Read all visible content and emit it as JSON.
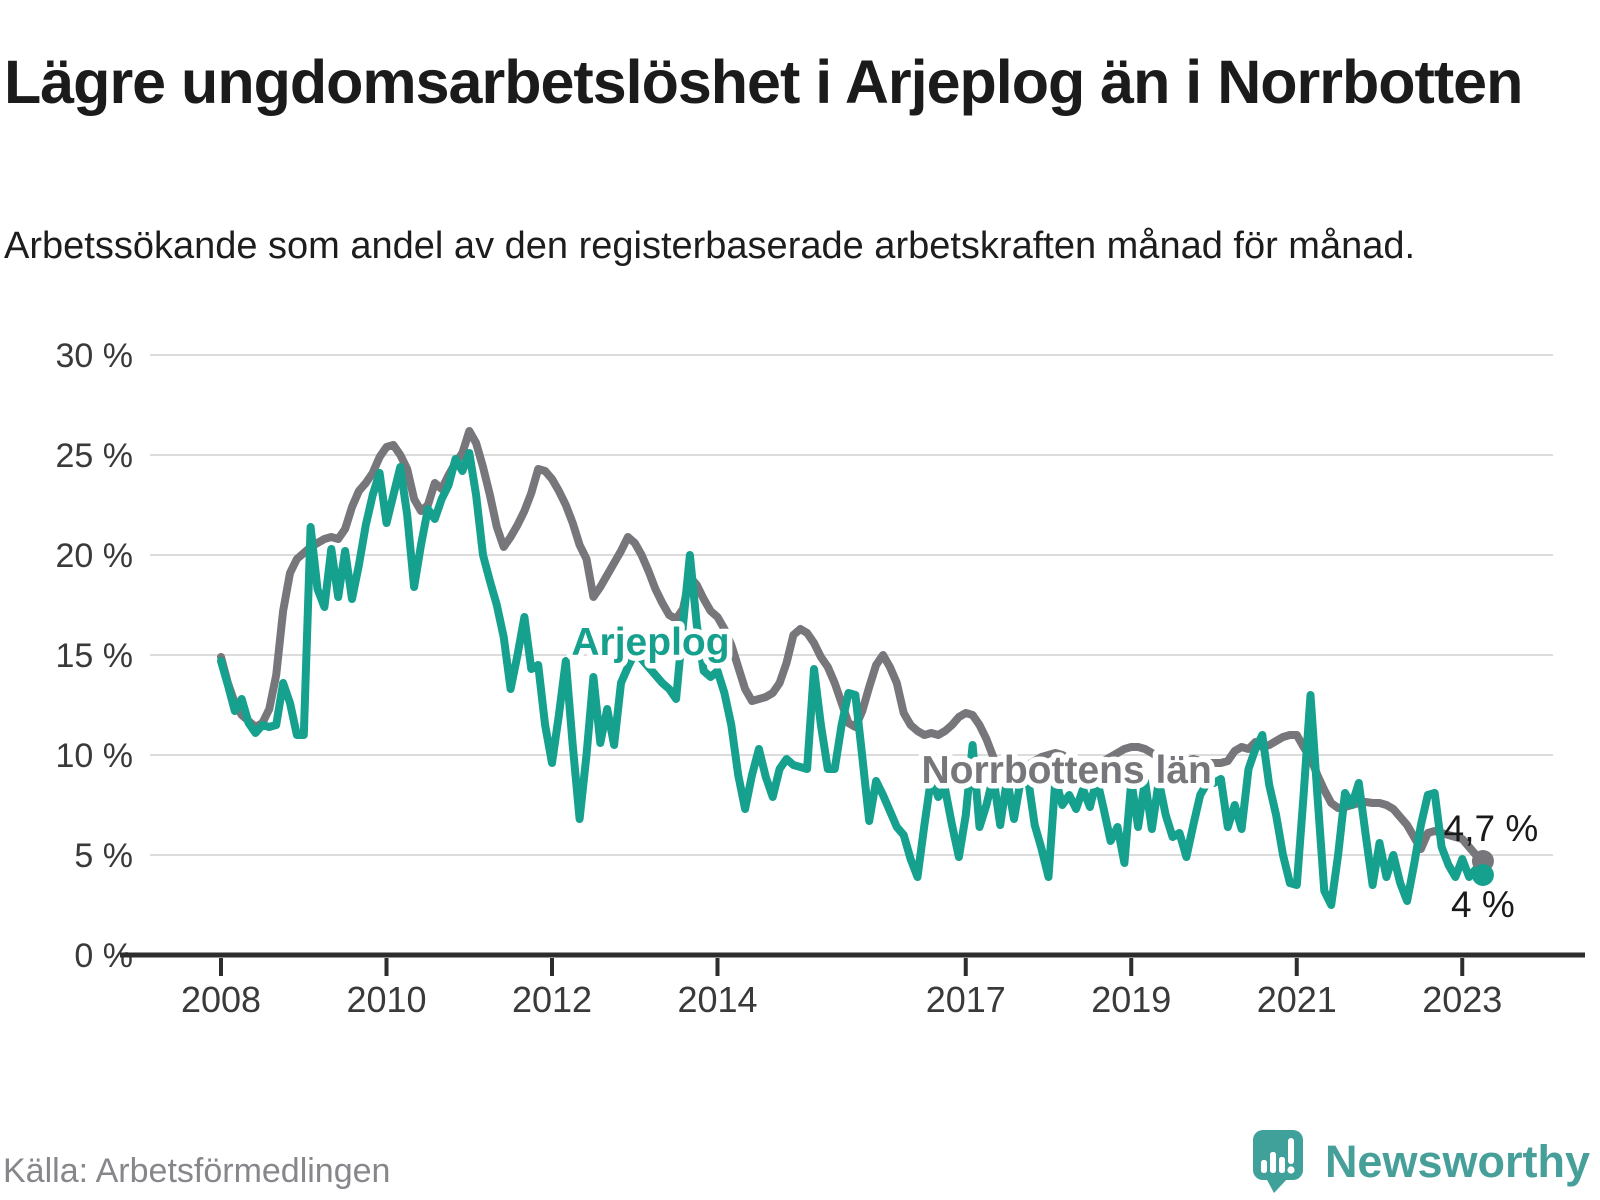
{
  "header": {
    "title": "Lägre ungdomsarbetslöshet i Arjeplog än i Norrbotten",
    "subtitle": "Arbetssökande som andel av den registerbaserade arbetskraften månad för månad."
  },
  "footer": {
    "source": "Källa: Arbetsförmedlingen",
    "brand": "Newsworthy"
  },
  "colors": {
    "arjeplog": "#16a08e",
    "norrbotten": "#77767b",
    "grid": "#dcdcdc",
    "axis": "#2d2d2d",
    "tick_text": "#3a3a3a",
    "value_text": "#1a1a1a",
    "logo": "#3fa19a"
  },
  "chart_data": {
    "type": "line",
    "title": "Lägre ungdomsarbetslöshet i Arjeplog än i Norrbotten",
    "xlabel": "",
    "ylabel": "",
    "ylim": [
      0,
      30
    ],
    "grid": true,
    "x_start": "2008-01",
    "x_frequency": "monthly",
    "x_end": "2023-04",
    "y_ticks": [
      {
        "value": 30,
        "label": "30 %"
      },
      {
        "value": 25,
        "label": "25 %"
      },
      {
        "value": 20,
        "label": "20 %"
      },
      {
        "value": 15,
        "label": "15 %"
      },
      {
        "value": 10,
        "label": "10 %"
      },
      {
        "value": 5,
        "label": "5 %"
      },
      {
        "value": 0,
        "label": "0 %"
      }
    ],
    "x_ticks": [
      {
        "year": 2008,
        "label": "2008"
      },
      {
        "year": 2010,
        "label": "2010"
      },
      {
        "year": 2012,
        "label": "2012"
      },
      {
        "year": 2014,
        "label": "2014"
      },
      {
        "year": 2017,
        "label": "2017"
      },
      {
        "year": 2019,
        "label": "2019"
      },
      {
        "year": 2021,
        "label": "2021"
      },
      {
        "year": 2023,
        "label": "2023"
      }
    ],
    "series": [
      {
        "name": "Norrbottens län",
        "color": "#77767b",
        "end_label": "4,7 %",
        "label_pos": {
          "year": 2018.22,
          "value": 9.3
        },
        "values": [
          14.9,
          13.6,
          12.6,
          12.0,
          11.7,
          11.4,
          11.6,
          12.3,
          14.0,
          17.2,
          19.1,
          19.8,
          20.1,
          20.4,
          20.6,
          20.8,
          20.9,
          20.8,
          21.3,
          22.4,
          23.2,
          23.6,
          24.1,
          24.9,
          25.4,
          25.5,
          25.0,
          24.3,
          22.8,
          22.2,
          22.5,
          23.6,
          23.3,
          24.0,
          24.6,
          25.1,
          26.2,
          25.6,
          24.4,
          23.0,
          21.4,
          20.4,
          20.9,
          21.5,
          22.2,
          23.1,
          24.3,
          24.2,
          23.8,
          23.2,
          22.5,
          21.6,
          20.5,
          19.8,
          17.9,
          18.4,
          19.0,
          19.6,
          20.2,
          20.9,
          20.6,
          20.0,
          19.2,
          18.3,
          17.6,
          17.0,
          16.8,
          17.3,
          18.9,
          18.5,
          17.8,
          17.2,
          16.9,
          16.3,
          15.5,
          14.4,
          13.3,
          12.7,
          12.8,
          12.9,
          13.1,
          13.6,
          14.6,
          16.0,
          16.3,
          16.1,
          15.6,
          14.9,
          14.4,
          13.6,
          12.6,
          11.6,
          11.4,
          12.2,
          13.4,
          14.5,
          15.0,
          14.4,
          13.6,
          12.1,
          11.5,
          11.2,
          11.0,
          11.1,
          11.0,
          11.2,
          11.5,
          11.9,
          12.1,
          12.0,
          11.5,
          10.8,
          9.9,
          8.9,
          8.7,
          8.9,
          9.2,
          9.5,
          9.7,
          9.9,
          10.0,
          10.1,
          10.0,
          9.8,
          9.6,
          9.4,
          9.3,
          9.5,
          9.7,
          9.9,
          10.1,
          10.3,
          10.4,
          10.4,
          10.3,
          10.1,
          9.9,
          9.7,
          9.5,
          9.6,
          9.7,
          9.8,
          9.7,
          9.6,
          9.6,
          9.6,
          9.7,
          10.2,
          10.4,
          10.3,
          10.65,
          10.4,
          10.5,
          10.7,
          10.9,
          11.0,
          11.0,
          10.4,
          9.85,
          9.0,
          8.25,
          7.6,
          7.35,
          7.4,
          7.5,
          7.6,
          7.65,
          7.6,
          7.6,
          7.5,
          7.3,
          6.9,
          6.5,
          5.9,
          5.3,
          6.1,
          6.2,
          6.1,
          6.0,
          5.9,
          5.8,
          5.4,
          5.0,
          4.7
        ]
      },
      {
        "name": "Arjeplog",
        "color": "#16a08e",
        "end_label": "4 %",
        "label_pos": {
          "year": 2013.19,
          "value": 15.7
        },
        "values": [
          14.7,
          13.5,
          12.2,
          12.8,
          11.6,
          11.1,
          11.5,
          11.4,
          11.5,
          13.6,
          12.6,
          11.0,
          11.0,
          21.4,
          18.3,
          17.4,
          20.3,
          17.9,
          20.2,
          17.8,
          19.5,
          21.5,
          23.0,
          24.1,
          21.6,
          23.0,
          24.4,
          22.0,
          18.4,
          20.5,
          22.3,
          21.8,
          22.8,
          23.5,
          24.8,
          24.2,
          25.1,
          23.0,
          20.0,
          18.7,
          17.5,
          15.9,
          13.3,
          15.0,
          16.9,
          14.3,
          14.5,
          11.5,
          9.6,
          12.0,
          14.7,
          10.5,
          6.8,
          10.0,
          13.9,
          10.6,
          12.3,
          10.5,
          13.6,
          14.4,
          15.1,
          14.8,
          14.4,
          14.0,
          13.6,
          13.3,
          12.8,
          16.5,
          20.0,
          16.5,
          14.2,
          13.9,
          14.2,
          13.1,
          11.5,
          9.0,
          7.3,
          9.0,
          10.3,
          8.9,
          7.9,
          9.3,
          9.8,
          9.5,
          9.4,
          9.3,
          14.3,
          11.5,
          9.3,
          9.3,
          11.5,
          13.1,
          13.0,
          9.9,
          6.7,
          8.7,
          8.0,
          7.2,
          6.4,
          6.0,
          4.8,
          3.9,
          6.5,
          8.9,
          7.9,
          8.3,
          6.5,
          4.9,
          7.0,
          10.5,
          6.4,
          7.5,
          8.9,
          6.5,
          8.8,
          6.8,
          8.8,
          8.9,
          6.5,
          5.3,
          3.9,
          8.8,
          7.5,
          8.0,
          7.3,
          8.3,
          7.4,
          8.8,
          7.3,
          5.7,
          6.4,
          4.6,
          8.7,
          6.4,
          8.7,
          6.3,
          8.7,
          7.0,
          5.9,
          6.1,
          4.9,
          6.5,
          8.0,
          8.6,
          8.6,
          8.8,
          6.4,
          7.5,
          6.3,
          9.3,
          10.3,
          11.0,
          8.5,
          7.0,
          5.0,
          3.6,
          3.5,
          8.0,
          13.0,
          8.0,
          3.2,
          2.5,
          5.0,
          8.1,
          7.5,
          8.6,
          6.0,
          3.5,
          5.6,
          3.9,
          5.0,
          3.6,
          2.7,
          4.5,
          6.5,
          8.0,
          8.1,
          5.4,
          4.5,
          3.9,
          4.8,
          3.9,
          4.3,
          4.0
        ]
      }
    ]
  }
}
